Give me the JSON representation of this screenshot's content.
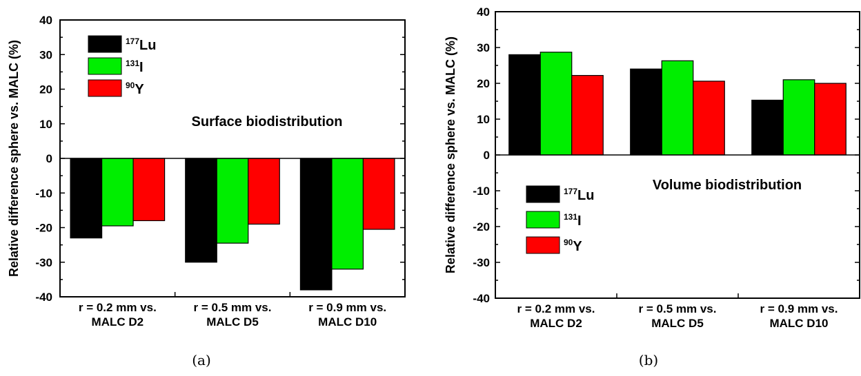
{
  "chart_data": [
    {
      "type": "bar",
      "panel_label": "(a)",
      "annotation": "Surface biodistribution",
      "ylabel": "Relative difference sphere  vs. MALC (%)",
      "ylim": [
        -40,
        40
      ],
      "yticks": [
        -40,
        -30,
        -20,
        -10,
        0,
        10,
        20,
        30,
        40
      ],
      "categories": [
        [
          "r = 0.2 mm vs.",
          "MALC D2"
        ],
        [
          "r = 0.5 mm vs.",
          "MALC D5"
        ],
        [
          "r = 0.9 mm vs.",
          "MALC D10"
        ]
      ],
      "legend_position": "top-left",
      "series": [
        {
          "name": "Lu",
          "mass": "177",
          "color": "#000000",
          "values": [
            -23,
            -30,
            -38
          ]
        },
        {
          "name": "I",
          "mass": "131",
          "color": "#00ee00",
          "values": [
            -19.5,
            -24.5,
            -32
          ]
        },
        {
          "name": "Y",
          "mass": "90",
          "color": "#ff0000",
          "values": [
            -18,
            -19,
            -20.5
          ]
        }
      ]
    },
    {
      "type": "bar",
      "panel_label": "(b)",
      "annotation": "Volume biodistribution",
      "ylabel": "Relative difference sphere  vs. MALC (%)",
      "ylim": [
        -40,
        40
      ],
      "yticks": [
        -40,
        -30,
        -20,
        -10,
        0,
        10,
        20,
        30,
        40
      ],
      "categories": [
        [
          "r = 0.2 mm vs.",
          "MALC D2"
        ],
        [
          "r = 0.5 mm vs.",
          "MALC D5"
        ],
        [
          "r = 0.9 mm vs.",
          "MALC D10"
        ]
      ],
      "legend_position": "lower-left",
      "series": [
        {
          "name": "Lu",
          "mass": "177",
          "color": "#000000",
          "values": [
            28,
            24,
            15.3
          ]
        },
        {
          "name": "I",
          "mass": "131",
          "color": "#00ee00",
          "values": [
            28.7,
            26.3,
            21
          ]
        },
        {
          "name": "Y",
          "mass": "90",
          "color": "#ff0000",
          "values": [
            22.2,
            20.6,
            20
          ]
        }
      ]
    }
  ]
}
